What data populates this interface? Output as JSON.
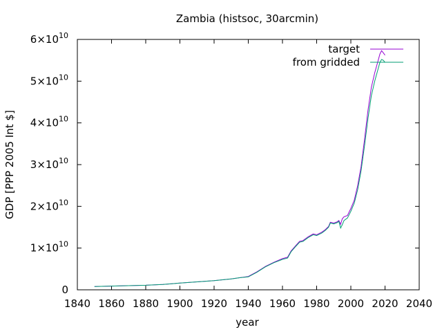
{
  "chart_data": {
    "type": "line",
    "title": "Zambia (histsoc, 30arcmin)",
    "xlabel": "year",
    "ylabel": "GDP [PPP 2005 Int $]",
    "xlim": [
      1840,
      2040
    ],
    "ylim": [
      0,
      60000000000.0
    ],
    "xticks": [
      "1840",
      "1860",
      "1880",
      "1900",
      "1920",
      "1940",
      "1960",
      "1980",
      "2000",
      "2020",
      "2040"
    ],
    "yticks": [
      {
        "mant": "0",
        "exp": ""
      },
      {
        "mant": "1×10",
        "exp": "10"
      },
      {
        "mant": "2×10",
        "exp": "10"
      },
      {
        "mant": "3×10",
        "exp": "10"
      },
      {
        "mant": "4×10",
        "exp": "10"
      },
      {
        "mant": "5×10",
        "exp": "10"
      },
      {
        "mant": "6×10",
        "exp": "10"
      }
    ],
    "grid": false,
    "legend_position": "top-right",
    "series": [
      {
        "name": "target",
        "color": "#9400d3",
        "x": [
          1850,
          1860,
          1870,
          1880,
          1890,
          1900,
          1910,
          1920,
          1930,
          1935,
          1940,
          1945,
          1950,
          1955,
          1960,
          1963,
          1965,
          1968,
          1970,
          1972,
          1975,
          1978,
          1980,
          1983,
          1985,
          1987,
          1988,
          1990,
          1992,
          1993,
          1994,
          1995,
          1996,
          1998,
          2000,
          2002,
          2004,
          2006,
          2008,
          2010,
          2012,
          2014,
          2016,
          2017,
          2018,
          2019,
          2020
        ],
        "y": [
          800000000.0,
          900000000.0,
          1000000000.0,
          1100000000.0,
          1300000000.0,
          1600000000.0,
          1900000000.0,
          2200000000.0,
          2600000000.0,
          2900000000.0,
          3200000000.0,
          4300000000.0,
          5600000000.0,
          6600000000.0,
          7500000000.0,
          7800000000.0,
          9300000000.0,
          10700000000.0,
          11600000000.0,
          11800000000.0,
          12700000000.0,
          13400000000.0,
          13200000000.0,
          13800000000.0,
          14400000000.0,
          15200000000.0,
          16200000000.0,
          16000000000.0,
          16300000000.0,
          16600000000.0,
          15700000000.0,
          17000000000.0,
          17500000000.0,
          17800000000.0,
          19500000000.0,
          21500000000.0,
          25000000000.0,
          29500000000.0,
          36000000000.0,
          43000000000.0,
          48500000000.0,
          52000000000.0,
          55000000000.0,
          56500000000.0,
          57300000000.0,
          56800000000.0,
          56200000000.0
        ]
      },
      {
        "name": "from gridded",
        "color": "#009e73",
        "x": [
          1850,
          1860,
          1870,
          1880,
          1890,
          1900,
          1910,
          1920,
          1930,
          1935,
          1940,
          1945,
          1950,
          1955,
          1960,
          1963,
          1965,
          1968,
          1970,
          1972,
          1975,
          1978,
          1980,
          1983,
          1985,
          1987,
          1988,
          1990,
          1992,
          1993,
          1994,
          1995,
          1996,
          1998,
          2000,
          2002,
          2004,
          2006,
          2008,
          2010,
          2012,
          2014,
          2016,
          2017,
          2018,
          2019,
          2020
        ],
        "y": [
          800000000.0,
          900000000.0,
          1000000000.0,
          1100000000.0,
          1300000000.0,
          1600000000.0,
          1900000000.0,
          2200000000.0,
          2600000000.0,
          2900000000.0,
          3100000000.0,
          4200000000.0,
          5500000000.0,
          6500000000.0,
          7300000000.0,
          7600000000.0,
          9100000000.0,
          10500000000.0,
          11400000000.0,
          11600000000.0,
          12500000000.0,
          13200000000.0,
          13000000000.0,
          13600000000.0,
          14200000000.0,
          15000000000.0,
          16000000000.0,
          15800000000.0,
          16100000000.0,
          16400000000.0,
          14800000000.0,
          15600000000.0,
          16600000000.0,
          17200000000.0,
          18800000000.0,
          20800000000.0,
          24000000000.0,
          28500000000.0,
          34500000000.0,
          41000000000.0,
          46500000000.0,
          50000000000.0,
          53000000000.0,
          54500000000.0,
          55200000000.0,
          55000000000.0,
          54500000000.0
        ]
      }
    ]
  }
}
